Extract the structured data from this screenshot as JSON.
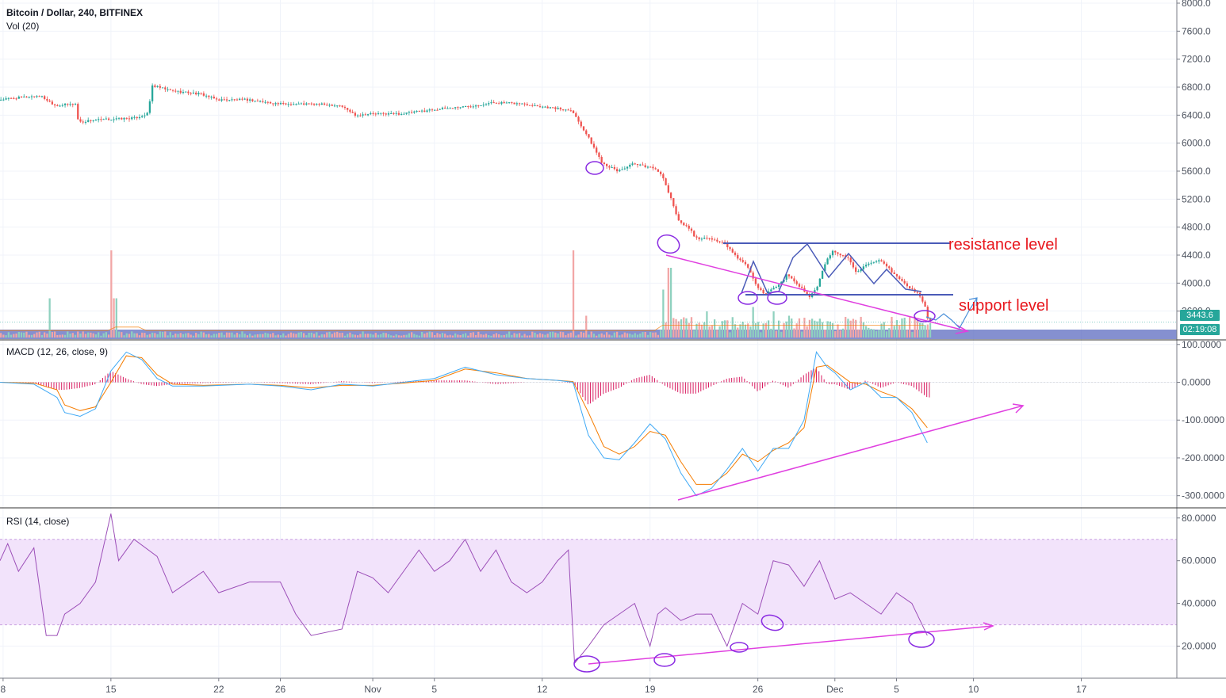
{
  "header": {
    "symbol": "Bitcoin / Dollar, 240, BITFINEX",
    "volume_label": "Vol (20)",
    "macd_label": "MACD (12, 26, close, 9)",
    "rsi_label": "RSI (14, close)"
  },
  "badges": {
    "last_price": "3443.6",
    "countdown": "02:19:08"
  },
  "annotations": {
    "resistance": "resistance level",
    "support": "support level"
  },
  "colors": {
    "up": "#26a69a",
    "down": "#ef5350",
    "volume_up": "#8fd1bf",
    "volume_down": "#f2a6a6",
    "drawing_blue": "#4a5bb8",
    "drawing_magenta": "#e040e0",
    "macd_line": "#3fa9f5",
    "signal_line": "#f57c00",
    "histogram": "#d81b60",
    "rsi_line": "#9c4fb8",
    "rsi_band": "#f2e3fb",
    "price_badge": "#26a69a",
    "countdown_badge": "#26a69a",
    "annotation_text": "#e8161c"
  },
  "chart_data": [
    {
      "type": "candlestick",
      "title": "Bitcoin / Dollar, 240, BITFINEX",
      "x_ticks": [
        "8",
        "15",
        "22",
        "26",
        "Nov",
        "5",
        "12",
        "19",
        "26",
        "Dec",
        "5",
        "10",
        "17"
      ],
      "y_ticks": [
        "8000.0",
        "7600.0",
        "7200.0",
        "6800.0",
        "6400.0",
        "6000.0",
        "5600.0",
        "5200.0",
        "4800.0",
        "4400.0",
        "4000.0",
        "3600.0"
      ],
      "ylim": [
        3200,
        8000
      ],
      "x_days": [
        8,
        15,
        22,
        26,
        32,
        36,
        43,
        50,
        57,
        62,
        66,
        71,
        78
      ],
      "day_range": [
        7.8,
        84.2
      ],
      "last_data_day": 68.2,
      "price_path": [
        [
          7.8,
          6620
        ],
        [
          10.5,
          6680
        ],
        [
          11.5,
          6540
        ],
        [
          12.8,
          6560
        ],
        [
          13,
          6300
        ],
        [
          14,
          6330
        ],
        [
          16.7,
          6360
        ],
        [
          17.5,
          6420
        ],
        [
          17.8,
          6820
        ],
        [
          19,
          6750
        ],
        [
          21,
          6700
        ],
        [
          22,
          6620
        ],
        [
          24,
          6620
        ],
        [
          26,
          6560
        ],
        [
          28,
          6560
        ],
        [
          30,
          6540
        ],
        [
          31,
          6400
        ],
        [
          32,
          6420
        ],
        [
          34,
          6420
        ],
        [
          36,
          6480
        ],
        [
          38,
          6520
        ],
        [
          40,
          6580
        ],
        [
          42,
          6560
        ],
        [
          44.5,
          6480
        ],
        [
          45,
          6480
        ],
        [
          46,
          6120
        ],
        [
          47,
          5720
        ],
        [
          48,
          5600
        ],
        [
          49,
          5700
        ],
        [
          50.5,
          5640
        ],
        [
          51,
          5480
        ],
        [
          52,
          4880
        ],
        [
          52.8,
          4760
        ],
        [
          53,
          4640
        ],
        [
          54,
          4640
        ],
        [
          55,
          4560
        ],
        [
          55.5,
          4420
        ],
        [
          56.5,
          4220
        ],
        [
          57,
          3960
        ],
        [
          57.5,
          3840
        ],
        [
          58.5,
          3980
        ],
        [
          59,
          4120
        ],
        [
          60,
          3920
        ],
        [
          60.5,
          3800
        ],
        [
          61,
          3960
        ],
        [
          61.5,
          4300
        ],
        [
          62,
          4460
        ],
        [
          63,
          4350
        ],
        [
          63.5,
          4160
        ],
        [
          64,
          4240
        ],
        [
          65,
          4320
        ],
        [
          65.5,
          4230
        ],
        [
          66,
          4120
        ],
        [
          67,
          3920
        ],
        [
          67.5,
          3860
        ],
        [
          68,
          3640
        ],
        [
          68.2,
          3443.6
        ]
      ],
      "last_price": 3443.6,
      "countdown": "02:19:08"
    },
    {
      "type": "bar",
      "title": "Vol (20)",
      "spikes": [
        [
          10.9,
          0.45
        ],
        [
          15,
          1.0
        ],
        [
          15.2,
          0.45
        ],
        [
          45,
          1.0
        ],
        [
          45.8,
          0.25
        ],
        [
          50.8,
          0.55
        ],
        [
          51.2,
          0.8
        ],
        [
          53.6,
          0.3
        ],
        [
          56.6,
          0.35
        ],
        [
          58,
          0.3
        ],
        [
          58.9,
          0.25
        ],
        [
          60.4,
          0.2
        ]
      ]
    },
    {
      "type": "line",
      "title": "MACD (12, 26, close, 9)",
      "y_ticks": [
        "100.0000",
        "0.0000",
        "-100.0000",
        "-200.0000",
        "-300.0000"
      ],
      "ylim": [
        -330,
        110
      ],
      "series": [
        {
          "role": "macd",
          "points": [
            [
              7.8,
              0
            ],
            [
              10,
              -5
            ],
            [
              11.5,
              -40
            ],
            [
              12,
              -80
            ],
            [
              13,
              -90
            ],
            [
              14,
              -70
            ],
            [
              15,
              30
            ],
            [
              16,
              80
            ],
            [
              17,
              60
            ],
            [
              18,
              10
            ],
            [
              19,
              -10
            ],
            [
              21,
              -10
            ],
            [
              24,
              -5
            ],
            [
              26,
              -10
            ],
            [
              28,
              -20
            ],
            [
              30,
              -5
            ],
            [
              32,
              -10
            ],
            [
              34,
              0
            ],
            [
              36,
              10
            ],
            [
              38,
              40
            ],
            [
              40,
              20
            ],
            [
              42,
              10
            ],
            [
              44,
              5
            ],
            [
              45,
              0
            ],
            [
              46,
              -140
            ],
            [
              47,
              -200
            ],
            [
              48,
              -205
            ],
            [
              49,
              -160
            ],
            [
              50,
              -110
            ],
            [
              51,
              -150
            ],
            [
              52,
              -240
            ],
            [
              53,
              -300
            ],
            [
              54,
              -280
            ],
            [
              55,
              -230
            ],
            [
              56,
              -175
            ],
            [
              57,
              -235
            ],
            [
              58,
              -175
            ],
            [
              59,
              -175
            ],
            [
              60,
              -100
            ],
            [
              60.8,
              80
            ],
            [
              61.5,
              40
            ],
            [
              62,
              25
            ],
            [
              63,
              -20
            ],
            [
              64,
              0
            ],
            [
              65,
              -40
            ],
            [
              66,
              -40
            ],
            [
              67,
              -80
            ],
            [
              68,
              -160
            ]
          ]
        },
        {
          "role": "signal",
          "points": [
            [
              7.8,
              0
            ],
            [
              10,
              -2
            ],
            [
              11.5,
              -20
            ],
            [
              12,
              -60
            ],
            [
              13,
              -75
            ],
            [
              14,
              -65
            ],
            [
              15,
              0
            ],
            [
              16,
              70
            ],
            [
              17,
              65
            ],
            [
              18,
              20
            ],
            [
              19,
              -5
            ],
            [
              21,
              -8
            ],
            [
              24,
              -5
            ],
            [
              26,
              -8
            ],
            [
              28,
              -15
            ],
            [
              30,
              -8
            ],
            [
              32,
              -8
            ],
            [
              34,
              -2
            ],
            [
              36,
              5
            ],
            [
              38,
              35
            ],
            [
              40,
              25
            ],
            [
              42,
              10
            ],
            [
              44,
              5
            ],
            [
              45,
              2
            ],
            [
              46,
              -80
            ],
            [
              47,
              -170
            ],
            [
              48,
              -190
            ],
            [
              49,
              -170
            ],
            [
              50,
              -130
            ],
            [
              51,
              -140
            ],
            [
              52,
              -210
            ],
            [
              53,
              -270
            ],
            [
              54,
              -270
            ],
            [
              55,
              -240
            ],
            [
              56,
              -190
            ],
            [
              57,
              -210
            ],
            [
              58,
              -180
            ],
            [
              59,
              -160
            ],
            [
              60,
              -120
            ],
            [
              60.8,
              40
            ],
            [
              61.5,
              45
            ],
            [
              62,
              30
            ],
            [
              63,
              0
            ],
            [
              64,
              -5
            ],
            [
              65,
              -25
            ],
            [
              66,
              -40
            ],
            [
              67,
              -70
            ],
            [
              68,
              -120
            ]
          ]
        }
      ]
    },
    {
      "type": "line",
      "title": "RSI (14, close)",
      "y_ticks": [
        "80.0000",
        "60.0000",
        "40.0000",
        "20.0000"
      ],
      "ylim": [
        5,
        84
      ],
      "band": [
        30,
        70
      ],
      "points": [
        [
          7.8,
          60
        ],
        [
          8.3,
          68
        ],
        [
          9,
          55
        ],
        [
          10,
          66
        ],
        [
          10.8,
          25
        ],
        [
          11.5,
          25
        ],
        [
          12,
          35
        ],
        [
          13,
          40
        ],
        [
          14,
          50
        ],
        [
          15,
          82
        ],
        [
          15.5,
          60
        ],
        [
          16.5,
          70
        ],
        [
          18,
          62
        ],
        [
          19,
          45
        ],
        [
          20,
          50
        ],
        [
          21,
          55
        ],
        [
          22,
          45
        ],
        [
          24,
          50
        ],
        [
          26,
          50
        ],
        [
          27,
          35
        ],
        [
          28,
          25
        ],
        [
          30,
          28
        ],
        [
          31,
          55
        ],
        [
          32,
          52
        ],
        [
          33,
          45
        ],
        [
          35,
          65
        ],
        [
          36,
          55
        ],
        [
          37,
          60
        ],
        [
          38,
          70
        ],
        [
          39,
          55
        ],
        [
          40,
          65
        ],
        [
          41,
          50
        ],
        [
          42,
          45
        ],
        [
          43,
          50
        ],
        [
          44,
          60
        ],
        [
          44.7,
          65
        ],
        [
          45.1,
          12
        ],
        [
          46,
          20
        ],
        [
          47,
          30
        ],
        [
          48,
          35
        ],
        [
          49,
          40
        ],
        [
          50,
          20
        ],
        [
          50.5,
          35
        ],
        [
          51,
          38
        ],
        [
          52,
          32
        ],
        [
          53,
          35
        ],
        [
          54,
          35
        ],
        [
          55,
          20
        ],
        [
          56,
          40
        ],
        [
          57,
          35
        ],
        [
          58,
          60
        ],
        [
          59,
          58
        ],
        [
          60,
          48
        ],
        [
          61,
          60
        ],
        [
          62,
          42
        ],
        [
          63,
          45
        ],
        [
          64,
          40
        ],
        [
          65,
          35
        ],
        [
          66,
          45
        ],
        [
          67,
          40
        ],
        [
          68,
          25
        ]
      ]
    }
  ]
}
